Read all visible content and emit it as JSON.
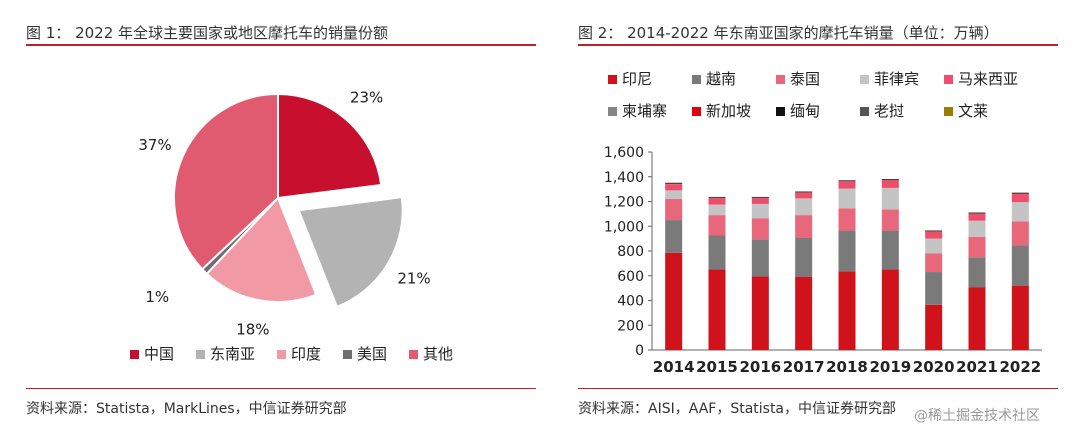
{
  "left": {
    "title": "图 1：  2022 年全球主要国家或地区摩托车的销量份额",
    "source": "资料来源：Statista，MarkLines，中信证券研究部"
  },
  "right": {
    "title": "图 2：  2014-2022 年东南亚国家的摩托车销量（单位：万辆）",
    "source": "资料来源：AISI，AAF，Statista，中信证券研究部"
  },
  "watermark": "@稀土掘金技术社区",
  "chart_data": [
    {
      "type": "pie",
      "title": "2022 年全球主要国家或地区摩托车的销量份额",
      "slices": [
        {
          "label": "中国",
          "value": 23,
          "display": "23%",
          "color": "#c8102e",
          "exploded": false
        },
        {
          "label": "东南亚",
          "value": 21,
          "display": "21%",
          "color": "#b3b3b3",
          "exploded": true
        },
        {
          "label": "印度",
          "value": 18,
          "display": "18%",
          "color": "#f19aa6",
          "exploded": false
        },
        {
          "label": "美国",
          "value": 1,
          "display": "1%",
          "color": "#6e6e6e",
          "exploded": false
        },
        {
          "label": "其他",
          "value": 37,
          "display": "37%",
          "color": "#e05a70",
          "exploded": false
        }
      ],
      "legend": [
        "中国",
        "东南亚",
        "印度",
        "美国",
        "其他"
      ],
      "legend_position": "bottom"
    },
    {
      "type": "bar",
      "stacked": true,
      "title": "2014-2022 年东南亚国家的摩托车销量（单位：万辆）",
      "categories": [
        "2014",
        "2015",
        "2016",
        "2017",
        "2018",
        "2019",
        "2020",
        "2021",
        "2022"
      ],
      "ylim": [
        0,
        1600
      ],
      "yticks": [
        "0",
        "200",
        "400",
        "600",
        "800",
        "1,000",
        "1,200",
        "1,400",
        "1,600"
      ],
      "yticks_values": [
        0,
        200,
        400,
        600,
        800,
        1000,
        1200,
        1400,
        1600
      ],
      "legend_position": "top",
      "series": [
        {
          "name": "印尼",
          "color": "#d0121b",
          "values": [
            785,
            650,
            595,
            590,
            635,
            650,
            365,
            505,
            520
          ]
        },
        {
          "name": "越南",
          "color": "#7a7a7a",
          "values": [
            265,
            275,
            300,
            315,
            330,
            315,
            265,
            245,
            325
          ]
        },
        {
          "name": "泰国",
          "color": "#e8677a",
          "values": [
            170,
            165,
            170,
            185,
            180,
            170,
            150,
            165,
            195
          ]
        },
        {
          "name": "菲律宾",
          "color": "#c4c4c4",
          "values": [
            70,
            85,
            115,
            135,
            160,
            175,
            120,
            130,
            155
          ]
        },
        {
          "name": "马来西亚",
          "color": "#ee4e6b",
          "values": [
            50,
            50,
            45,
            45,
            55,
            60,
            55,
            55,
            65
          ]
        },
        {
          "name": "柬埔寨",
          "color": "#858585",
          "values": [
            5,
            5,
            5,
            5,
            5,
            5,
            5,
            5,
            5
          ]
        },
        {
          "name": "新加坡",
          "color": "#e10010",
          "values": [
            2,
            2,
            2,
            2,
            2,
            2,
            2,
            2,
            2
          ]
        },
        {
          "name": "缅甸",
          "color": "#111111",
          "values": [
            2,
            2,
            2,
            2,
            2,
            2,
            2,
            2,
            2
          ]
        },
        {
          "name": "老挝",
          "color": "#555555",
          "values": [
            3,
            3,
            3,
            3,
            3,
            3,
            3,
            3,
            3
          ]
        },
        {
          "name": "文莱",
          "color": "#9a7d00",
          "values": [
            0,
            0,
            0,
            0,
            0,
            0,
            0,
            0,
            0
          ]
        }
      ]
    }
  ]
}
